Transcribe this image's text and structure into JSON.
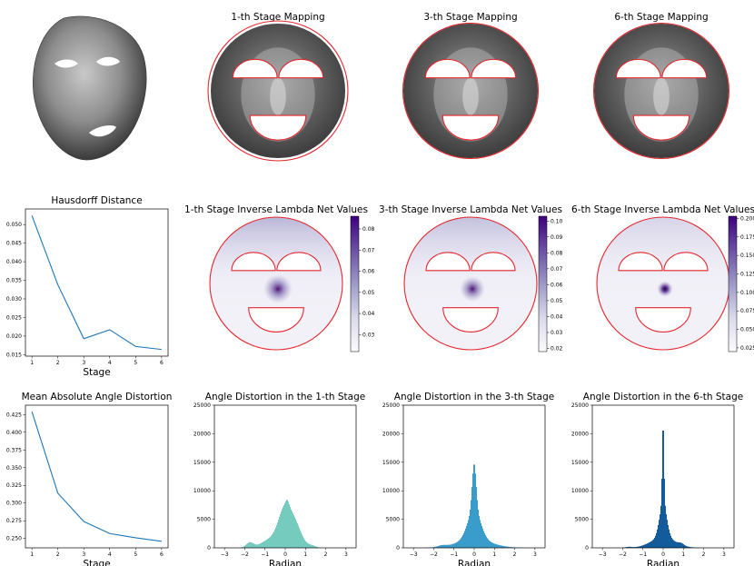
{
  "colors": {
    "line": "#1f77b4",
    "boundary": "#e3272e",
    "hist1": "#76cbbf",
    "hist2": "#3a9ccb",
    "hist3": "#135b9a",
    "colormap_light": "#f5f3fa",
    "colormap_dark": "#46066c",
    "face": "#8a8a8a"
  },
  "row1": {
    "face_icon": "3d-face-mesh-icon",
    "mappings": [
      {
        "title": "1-th Stage Mapping"
      },
      {
        "title": "3-th Stage Mapping"
      },
      {
        "title": "6-th Stage Mapping"
      }
    ]
  },
  "chart_data": [
    {
      "id": "hausdorff",
      "type": "line",
      "title": "Hausdorff Distance",
      "xlabel": "Stage",
      "ylabel": "",
      "x": [
        1,
        2,
        3,
        4,
        5,
        6
      ],
      "values": [
        0.0524,
        0.0338,
        0.0193,
        0.0217,
        0.0172,
        0.0164
      ],
      "xlim": [
        0.75,
        6.25
      ],
      "ylim": [
        0.0146,
        0.0542
      ],
      "xticks": [
        "1",
        "2",
        "3",
        "4",
        "5",
        "6"
      ],
      "yticks": [
        {
          "v": 0.015,
          "label": "0.015"
        },
        {
          "v": 0.02,
          "label": "0.020"
        },
        {
          "v": 0.025,
          "label": "0.025"
        },
        {
          "v": 0.03,
          "label": "0.030"
        },
        {
          "v": 0.035,
          "label": "0.035"
        },
        {
          "v": 0.04,
          "label": "0.040"
        },
        {
          "v": 0.045,
          "label": "0.045"
        },
        {
          "v": 0.05,
          "label": "0.050"
        }
      ]
    },
    {
      "id": "angle_distortion_mean",
      "type": "line",
      "title": "Mean Absolute Angle Distortion",
      "xlabel": "Stage",
      "ylabel": "",
      "x": [
        1,
        2,
        3,
        4,
        5,
        6
      ],
      "values": [
        0.429,
        0.314,
        0.274,
        0.257,
        0.251,
        0.246
      ],
      "xlim": [
        0.75,
        6.25
      ],
      "ylim": [
        0.2368,
        0.4382
      ],
      "xticks": [
        "1",
        "2",
        "3",
        "4",
        "5",
        "6"
      ],
      "yticks": [
        {
          "v": 0.25,
          "label": "0.250"
        },
        {
          "v": 0.275,
          "label": "0.275"
        },
        {
          "v": 0.3,
          "label": "0.300"
        },
        {
          "v": 0.325,
          "label": "0.325"
        },
        {
          "v": 0.35,
          "label": "0.350"
        },
        {
          "v": 0.375,
          "label": "0.375"
        },
        {
          "v": 0.4,
          "label": "0.400"
        },
        {
          "v": 0.425,
          "label": "0.425"
        }
      ]
    },
    {
      "id": "inv_lambda_1",
      "type": "heatmap",
      "title": "1-th Stage Inverse Lambda Net Values",
      "colorbar_range": [
        0.022,
        0.086
      ],
      "colorbar_ticks": [
        {
          "v": 0.03,
          "label": "0.03"
        },
        {
          "v": 0.04,
          "label": "0.04"
        },
        {
          "v": 0.05,
          "label": "0.05"
        },
        {
          "v": 0.06,
          "label": "0.06"
        },
        {
          "v": 0.07,
          "label": "0.07"
        },
        {
          "v": 0.08,
          "label": "0.08"
        }
      ]
    },
    {
      "id": "inv_lambda_3",
      "type": "heatmap",
      "title": "3-th Stage Inverse Lambda Net Values",
      "colorbar_range": [
        0.018,
        0.103
      ],
      "colorbar_ticks": [
        {
          "v": 0.02,
          "label": "0.02"
        },
        {
          "v": 0.03,
          "label": "0.03"
        },
        {
          "v": 0.04,
          "label": "0.04"
        },
        {
          "v": 0.05,
          "label": "0.05"
        },
        {
          "v": 0.06,
          "label": "0.06"
        },
        {
          "v": 0.07,
          "label": "0.07"
        },
        {
          "v": 0.08,
          "label": "0.08"
        },
        {
          "v": 0.09,
          "label": "0.09"
        },
        {
          "v": 0.1,
          "label": "0.10"
        }
      ]
    },
    {
      "id": "inv_lambda_6",
      "type": "heatmap",
      "title": "6-th Stage Inverse Lambda Net Values",
      "colorbar_range": [
        0.02,
        0.203
      ],
      "colorbar_ticks": [
        {
          "v": 0.025,
          "label": "0.025"
        },
        {
          "v": 0.05,
          "label": "0.050"
        },
        {
          "v": 0.075,
          "label": "0.075"
        },
        {
          "v": 0.1,
          "label": "0.100"
        },
        {
          "v": 0.125,
          "label": "0.125"
        },
        {
          "v": 0.15,
          "label": "0.150"
        },
        {
          "v": 0.175,
          "label": "0.175"
        },
        {
          "v": 0.2,
          "label": "0.200"
        }
      ]
    },
    {
      "id": "hist_1",
      "type": "bar",
      "title": "Angle Distortion in the 1-th Stage",
      "xlabel": "Radian",
      "ylim": [
        0,
        25000
      ],
      "xlim": [
        -3.5,
        3.5
      ],
      "xticks": [
        "-3",
        "-2",
        "-1",
        "0",
        "1",
        "2",
        "3"
      ],
      "yticks": [
        {
          "v": 0,
          "label": "0"
        },
        {
          "v": 5000,
          "label": "5000"
        },
        {
          "v": 10000,
          "label": "10000"
        },
        {
          "v": 15000,
          "label": "15000"
        },
        {
          "v": 20000,
          "label": "20000"
        },
        {
          "v": 25000,
          "label": "25000"
        }
      ],
      "peaks": [
        {
          "center": 0.0,
          "sigma": 0.32,
          "amp": 6600
        },
        {
          "center": 0.55,
          "sigma": 0.3,
          "amp": 3200
        },
        {
          "center": -0.7,
          "sigma": 0.45,
          "amp": 1500
        },
        {
          "center": -1.75,
          "sigma": 0.18,
          "amp": 900
        },
        {
          "center": 1.3,
          "sigma": 0.2,
          "amp": 400
        },
        {
          "center": 0.1,
          "sigma": 0.08,
          "amp": 800
        }
      ]
    },
    {
      "id": "hist_3",
      "type": "bar",
      "title": "Angle Distortion in the 3-th Stage",
      "xlabel": "Radian",
      "ylim": [
        0,
        25000
      ],
      "xlim": [
        -3.5,
        3.5
      ],
      "xticks": [
        "-3",
        "-2",
        "-1",
        "0",
        "1",
        "2",
        "3"
      ],
      "yticks": [
        {
          "v": 0,
          "label": "0"
        },
        {
          "v": 5000,
          "label": "5000"
        },
        {
          "v": 10000,
          "label": "10000"
        },
        {
          "v": 15000,
          "label": "15000"
        },
        {
          "v": 20000,
          "label": "20000"
        },
        {
          "v": 25000,
          "label": "25000"
        }
      ],
      "peaks": [
        {
          "center": 0.0,
          "sigma": 0.1,
          "amp": 8200
        },
        {
          "center": 0.0,
          "sigma": 0.32,
          "amp": 5200
        },
        {
          "center": 0.0,
          "sigma": 0.85,
          "amp": 1400
        },
        {
          "center": -1.6,
          "sigma": 0.2,
          "amp": 250
        }
      ]
    },
    {
      "id": "hist_6",
      "type": "bar",
      "title": "Angle Distortion in the 6-th Stage",
      "xlabel": "Radian",
      "ylim": [
        0,
        25000
      ],
      "xlim": [
        -3.5,
        3.5
      ],
      "xticks": [
        "-3",
        "-2",
        "-1",
        "0",
        "1",
        "2",
        "3"
      ],
      "yticks": [
        {
          "v": 0,
          "label": "0"
        },
        {
          "v": 5000,
          "label": "5000"
        },
        {
          "v": 10000,
          "label": "10000"
        },
        {
          "v": 15000,
          "label": "15000"
        },
        {
          "v": 20000,
          "label": "20000"
        },
        {
          "v": 25000,
          "label": "25000"
        }
      ],
      "peaks": [
        {
          "center": 0.0,
          "sigma": 0.045,
          "amp": 14500
        },
        {
          "center": 0.0,
          "sigma": 0.18,
          "amp": 6000
        },
        {
          "center": 0.0,
          "sigma": 0.6,
          "amp": 1800
        },
        {
          "center": -1.7,
          "sigma": 0.15,
          "amp": 150
        },
        {
          "center": 0.9,
          "sigma": 0.12,
          "amp": 300
        }
      ]
    }
  ]
}
